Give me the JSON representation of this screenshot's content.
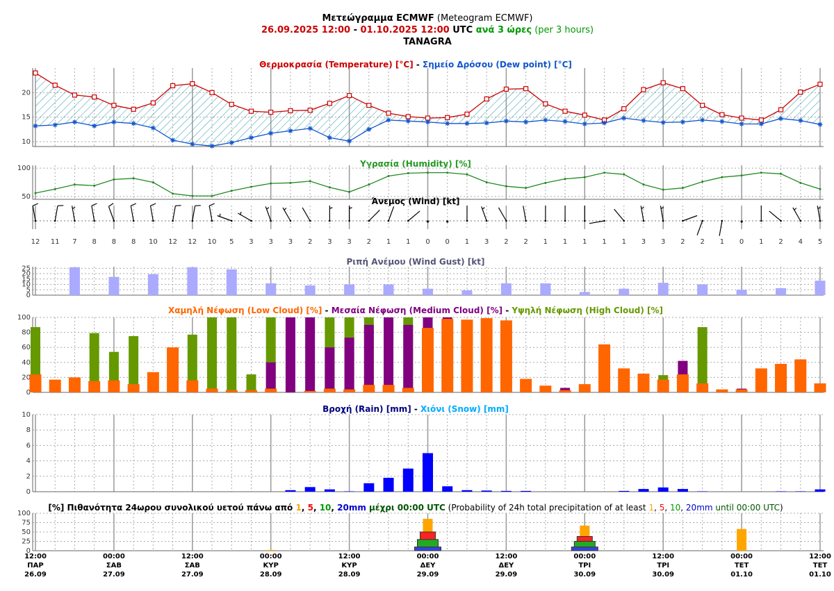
{
  "header": {
    "lines": [
      [
        {
          "text": "Μετεώγραμμα ECMWF",
          "color": "#000000",
          "bold": true
        },
        {
          "text": " (Meteogram ECMWF)",
          "color": "#000000",
          "bold": false
        }
      ],
      [
        {
          "text": "26.09.2025 12:00",
          "color": "#cc0000",
          "bold": true
        },
        {
          "text": " - ",
          "color": "#000000",
          "bold": true
        },
        {
          "text": "01.10.2025 12:00",
          "color": "#cc0000",
          "bold": true
        },
        {
          "text": " UTC",
          "color": "#000000",
          "bold": true
        },
        {
          "text": " ανά 3 ώρες",
          "color": "#009900",
          "bold": true
        },
        {
          "text": " (per 3 hours)",
          "color": "#009900",
          "bold": false
        }
      ],
      [
        {
          "text": "TANAGRA",
          "color": "#000000",
          "bold": true
        }
      ]
    ]
  },
  "time_axis": {
    "categories": [
      {
        "time": "12:00",
        "day": "ΠΑΡ",
        "date": "26.09"
      },
      null,
      null,
      null,
      {
        "time": "00:00",
        "day": "ΣΑΒ",
        "date": "27.09"
      },
      null,
      null,
      null,
      {
        "time": "12:00",
        "day": "ΣΑΒ",
        "date": "27.09"
      },
      null,
      null,
      null,
      {
        "time": "00:00",
        "day": "ΚΥΡ",
        "date": "28.09"
      },
      null,
      null,
      null,
      {
        "time": "12:00",
        "day": "ΚΥΡ",
        "date": "28.09"
      },
      null,
      null,
      null,
      {
        "time": "00:00",
        "day": "ΔΕΥ",
        "date": "29.09"
      },
      null,
      null,
      null,
      {
        "time": "12:00",
        "day": "ΔΕΥ",
        "date": "29.09"
      },
      null,
      null,
      null,
      {
        "time": "00:00",
        "day": "ΤΡΙ",
        "date": "30.09"
      },
      null,
      null,
      null,
      {
        "time": "12:00",
        "day": "ΤΡΙ",
        "date": "30.09"
      },
      null,
      null,
      null,
      {
        "time": "00:00",
        "day": "ΤΕΤ",
        "date": "01.10"
      },
      null,
      null,
      null,
      {
        "time": "12:00",
        "day": "ΤΕΤ",
        "date": "01.10"
      }
    ]
  },
  "chart_data": [
    {
      "type": "line",
      "fill_between": true,
      "grid": true,
      "ylim": [
        9,
        25
      ],
      "yticks": [
        10,
        15,
        20
      ],
      "title": [
        {
          "text": "Θερμοκρασία (Temperature) [°C]",
          "color": "#cc0000",
          "bold": true
        },
        {
          "text": " - ",
          "color": "#000000",
          "bold": true
        },
        {
          "text": "Σημείο Δρόσου (Dew point) [°C]",
          "color": "#1155cc",
          "bold": true
        }
      ],
      "series": [
        {
          "color": "#cc0000",
          "marker": "square",
          "values": [
            24,
            21.5,
            19.5,
            19.1,
            17.4,
            16.6,
            17.9,
            21.4,
            21.8,
            20,
            17.6,
            16.2,
            16,
            16.3,
            16.4,
            17.8,
            19.4,
            17.4,
            15.8,
            15.1,
            14.8,
            14.9,
            15.6,
            18.7,
            20.7,
            20.8,
            17.7,
            16.2,
            15.4,
            14.4,
            16.7,
            20.6,
            22,
            20.8,
            17.4,
            15.5,
            14.8,
            14.4,
            16.5,
            20.1,
            21.7
          ]
        },
        {
          "color": "#1155cc",
          "marker": "star",
          "values": [
            13.2,
            13.4,
            14,
            13.2,
            14,
            13.7,
            12.8,
            10.3,
            9.5,
            9.1,
            9.8,
            10.8,
            11.7,
            12.2,
            12.7,
            10.8,
            10.1,
            12.5,
            14.4,
            14.2,
            14,
            13.7,
            13.7,
            13.8,
            14.2,
            14,
            14.4,
            14.1,
            13.6,
            13.8,
            14.8,
            14.3,
            13.9,
            14,
            14.4,
            14.1,
            13.6,
            13.6,
            14.7,
            14.3,
            13.5
          ]
        }
      ]
    },
    {
      "type": "line",
      "grid": true,
      "ylim": [
        45,
        105
      ],
      "yticks": [
        50,
        100
      ],
      "title": [
        {
          "text": "Υγρασία (Humidity) [%]",
          "color": "#229922",
          "bold": true
        }
      ],
      "series": [
        {
          "color": "#228822",
          "marker": "circle",
          "values": [
            56,
            63,
            71,
            69,
            80,
            82,
            75,
            55,
            51,
            51,
            60,
            67,
            73,
            74,
            77,
            66,
            58,
            71,
            86,
            91,
            92,
            92,
            89,
            75,
            68,
            65,
            74,
            81,
            84,
            92,
            89,
            71,
            62,
            65,
            76,
            84,
            87,
            92,
            90,
            74,
            63
          ]
        }
      ]
    },
    {
      "type": "barb",
      "color": "#000000",
      "title": [
        {
          "text": "Άνεμος (Wind) [kt]",
          "color": "#000000",
          "bold": true
        }
      ],
      "speed": [
        12,
        11,
        7,
        8,
        8,
        8,
        10,
        12,
        12,
        10,
        5,
        3,
        3,
        3,
        2,
        3,
        3,
        2,
        1,
        1,
        0,
        0,
        1,
        3,
        2,
        2,
        1,
        1,
        1,
        1,
        1,
        3,
        3,
        2,
        2,
        1,
        0,
        1,
        2,
        4,
        5
      ],
      "direction": [
        350,
        10,
        350,
        350,
        340,
        350,
        350,
        10,
        10,
        350,
        290,
        300,
        340,
        330,
        330,
        0,
        0,
        45,
        20,
        50,
        0,
        0,
        0,
        340,
        330,
        350,
        0,
        0,
        0,
        260,
        320,
        350,
        350,
        70,
        200,
        190,
        0,
        0,
        310,
        330,
        350
      ]
    },
    {
      "type": "bar",
      "grid": true,
      "ylim": [
        0,
        26.5
      ],
      "yticks": [
        0,
        5,
        10,
        15,
        20,
        25
      ],
      "color": "#aaaaff",
      "title": [
        {
          "text": "Ριπή Ανέμου (Wind Gust) [kt]",
          "color": "#555577",
          "bold": true
        }
      ],
      "values": [
        null,
        null,
        26,
        null,
        17,
        null,
        19.5,
        null,
        26,
        null,
        24,
        null,
        11,
        null,
        9,
        null,
        10,
        null,
        10,
        null,
        6,
        null,
        4.5,
        null,
        11,
        null,
        11,
        null,
        3,
        null,
        6,
        null,
        11.5,
        null,
        10,
        null,
        5,
        null,
        6.5,
        null,
        13.5
      ]
    },
    {
      "type": "bar",
      "grid": true,
      "ylim": [
        0,
        100
      ],
      "yticks": [
        0,
        20,
        40,
        60,
        80,
        100
      ],
      "title": [
        {
          "text": "Χαμηλή Νέφωση (Low Cloud) [%]",
          "color": "#ff6600",
          "bold": true
        },
        {
          "text": " - ",
          "color": "#000000",
          "bold": true
        },
        {
          "text": "Μεσαία Νέφωση (Medium Cloud) [%]",
          "color": "#800080",
          "bold": true
        },
        {
          "text": " - ",
          "color": "#000000",
          "bold": true
        },
        {
          "text": "Υψηλή Νέφωση (High Cloud) [%]",
          "color": "#669900",
          "bold": true
        }
      ],
      "series": [
        {
          "color": "#ff6600",
          "values": [
            24,
            17,
            20,
            15,
            16,
            11,
            27,
            60,
            16,
            5,
            3,
            3,
            5,
            0,
            2,
            5,
            4,
            10,
            10,
            6,
            86,
            98,
            97,
            99,
            96,
            18,
            9,
            3,
            11,
            64,
            32,
            25,
            17,
            24,
            12,
            4,
            4,
            32,
            38,
            44,
            12
          ]
        },
        {
          "color": "#800080",
          "values": [
            0,
            0,
            0,
            0,
            0,
            0,
            0,
            0,
            0,
            0,
            0,
            0,
            40,
            100,
            100,
            60,
            73,
            90,
            100,
            90,
            100,
            100,
            0,
            0,
            0,
            0,
            0,
            6,
            0,
            0,
            0,
            0,
            0,
            42,
            0,
            0,
            5,
            0,
            0,
            0,
            0
          ]
        },
        {
          "color": "#669900",
          "values": [
            87,
            0,
            0,
            79,
            54,
            75,
            0,
            0,
            77,
            100,
            100,
            24,
            100,
            0,
            0,
            100,
            100,
            100,
            0,
            100,
            0,
            0,
            0,
            0,
            0,
            0,
            0,
            0,
            0,
            0,
            0,
            0,
            23,
            0,
            87,
            0,
            0,
            0,
            0,
            0,
            0
          ]
        }
      ]
    },
    {
      "type": "bar",
      "grid": true,
      "ylim": [
        0,
        10
      ],
      "yticks": [
        0,
        2,
        4,
        6,
        8,
        10
      ],
      "title": [
        {
          "text": "Βροχή (Rain) [mm]",
          "color": "#000080",
          "bold": true
        },
        {
          "text": " - ",
          "color": "#000000",
          "bold": true
        },
        {
          "text": "Χιόνι (Snow) [mm]",
          "color": "#00aaff",
          "bold": true
        }
      ],
      "series": [
        {
          "color": "#0000ff",
          "values": [
            0,
            0,
            0,
            0,
            0,
            0,
            0,
            0,
            0,
            0,
            0,
            0,
            0,
            0.2,
            0.6,
            0.3,
            0.05,
            1.1,
            1.8,
            3,
            5,
            0.7,
            0.2,
            0.15,
            0.1,
            0.1,
            0,
            0,
            0,
            0,
            0.1,
            0.35,
            0.55,
            0.35,
            0.05,
            0,
            0,
            0,
            0.05,
            0.05,
            0.3
          ]
        },
        {
          "color": "#00aaff",
          "values": [
            0,
            0,
            0,
            0,
            0,
            0,
            0,
            0,
            0,
            0,
            0,
            0,
            0,
            0,
            0,
            0,
            0,
            0,
            0,
            0,
            0,
            0,
            0,
            0,
            0,
            0,
            0,
            0,
            0,
            0,
            0,
            0,
            0,
            0,
            0,
            0,
            0,
            0,
            0,
            0,
            0
          ]
        }
      ]
    },
    {
      "type": "bar",
      "grid": true,
      "ylim": [
        0,
        100
      ],
      "yticks": [
        0,
        25,
        50,
        75,
        100
      ],
      "title": [
        {
          "text": "[%] Πιθανότητα 24ωρου συνολικού υετού πάνω από ",
          "color": "#000000",
          "bold": true
        },
        {
          "text": "1",
          "color": "#ffa500",
          "bold": true
        },
        {
          "text": ", ",
          "color": "#000000",
          "bold": true
        },
        {
          "text": "5",
          "color": "#ff0000",
          "bold": true
        },
        {
          "text": ", ",
          "color": "#000000",
          "bold": true
        },
        {
          "text": "10",
          "color": "#009900",
          "bold": true
        },
        {
          "text": ", ",
          "color": "#000000",
          "bold": true
        },
        {
          "text": "20mm",
          "color": "#0000cc",
          "bold": true
        },
        {
          "text": " μέχρι 00:00 UTC",
          "color": "#005500",
          "bold": true
        },
        {
          "text": " (Probability of 24h total precipitation of at least ",
          "color": "#000000",
          "bold": false
        },
        {
          "text": "1",
          "color": "#ffa500",
          "bold": false
        },
        {
          "text": ", ",
          "color": "#000000",
          "bold": false
        },
        {
          "text": "5",
          "color": "#ff0000",
          "bold": false
        },
        {
          "text": ", ",
          "color": "#000000",
          "bold": false
        },
        {
          "text": "10",
          "color": "#009900",
          "bold": false
        },
        {
          "text": ", ",
          "color": "#000000",
          "bold": false
        },
        {
          "text": "20mm",
          "color": "#0000cc",
          "bold": false
        },
        {
          "text": " until 00:00 UTC",
          "color": "#005500",
          "bold": false
        },
        {
          "text": ")",
          "color": "#000000",
          "bold": false
        }
      ],
      "series": [
        {
          "color": "#ffa500",
          "values": [
            null,
            null,
            null,
            null,
            0,
            null,
            null,
            null,
            null,
            null,
            null,
            null,
            2,
            null,
            null,
            null,
            null,
            null,
            null,
            null,
            85,
            null,
            null,
            null,
            null,
            null,
            null,
            null,
            67,
            null,
            null,
            null,
            null,
            null,
            null,
            null,
            58,
            null,
            null,
            null,
            null
          ]
        },
        {
          "color": "#ff2222",
          "values": [
            null,
            null,
            null,
            null,
            0,
            null,
            null,
            null,
            null,
            null,
            null,
            null,
            0,
            null,
            null,
            null,
            null,
            null,
            null,
            null,
            50,
            null,
            null,
            null,
            null,
            null,
            null,
            null,
            38,
            null,
            null,
            null,
            null,
            null,
            null,
            null,
            0,
            null,
            null,
            null,
            null
          ]
        },
        {
          "color": "#22aa22",
          "values": [
            null,
            null,
            null,
            null,
            0,
            null,
            null,
            null,
            null,
            null,
            null,
            null,
            0,
            null,
            null,
            null,
            null,
            null,
            null,
            null,
            30,
            null,
            null,
            null,
            null,
            null,
            null,
            null,
            25,
            null,
            null,
            null,
            null,
            null,
            null,
            null,
            0,
            null,
            null,
            null,
            null
          ]
        },
        {
          "color": "#3344dd",
          "values": [
            null,
            null,
            null,
            null,
            0,
            null,
            null,
            null,
            null,
            null,
            null,
            null,
            0,
            null,
            null,
            null,
            null,
            null,
            null,
            null,
            10,
            null,
            null,
            null,
            null,
            null,
            null,
            null,
            10,
            null,
            null,
            null,
            null,
            null,
            null,
            null,
            0,
            null,
            null,
            null,
            null
          ]
        }
      ]
    }
  ]
}
